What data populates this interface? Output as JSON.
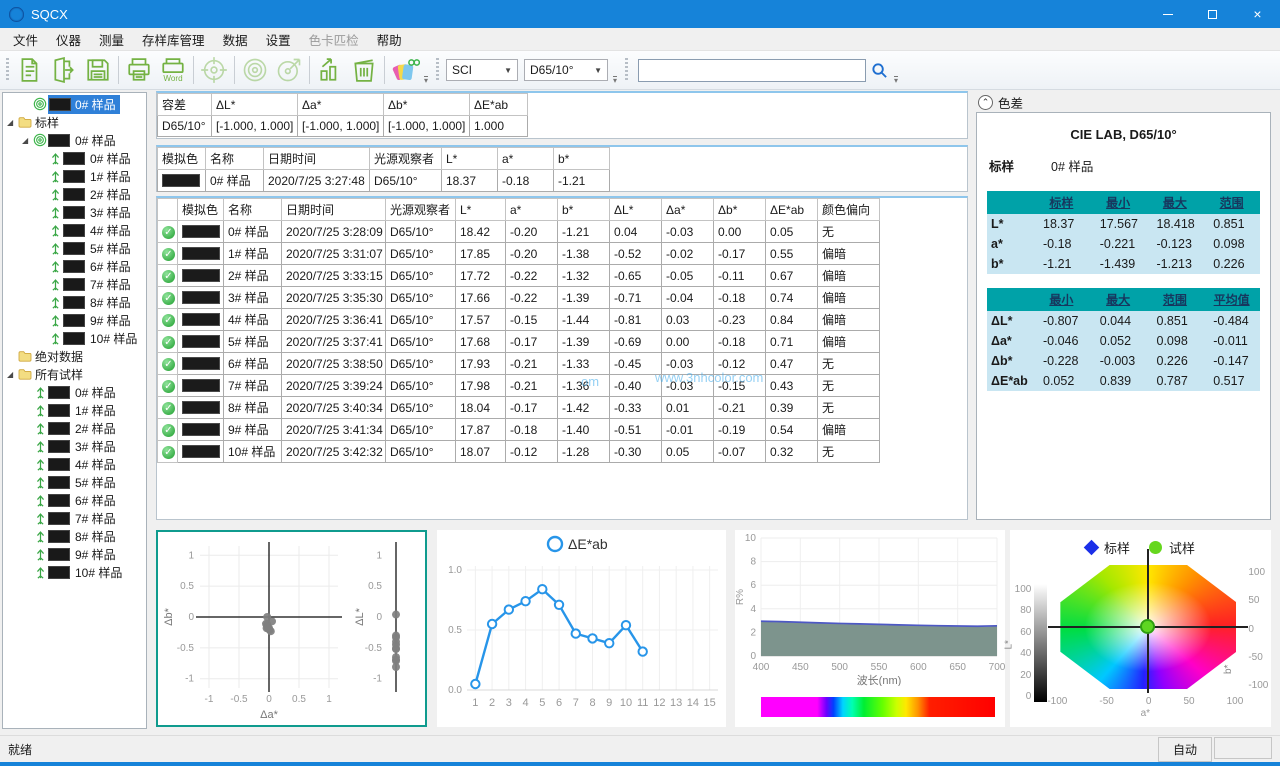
{
  "window": {
    "title": "SQCX"
  },
  "menu": {
    "items": [
      {
        "label": "文件",
        "disabled": false
      },
      {
        "label": "仪器",
        "disabled": false
      },
      {
        "label": "测量",
        "disabled": false
      },
      {
        "label": "存样库管理",
        "disabled": false
      },
      {
        "label": "数据",
        "disabled": false
      },
      {
        "label": "设置",
        "disabled": false
      },
      {
        "label": "色卡匹检",
        "disabled": true
      },
      {
        "label": "帮助",
        "disabled": false
      }
    ]
  },
  "toolbar": {
    "buttons": [
      {
        "icon": "new-document-icon",
        "disabled": false
      },
      {
        "icon": "import-icon",
        "disabled": false
      },
      {
        "icon": "save-icon",
        "disabled": false
      },
      {
        "icon": "print-icon",
        "disabled": false
      },
      {
        "icon": "export-word-icon",
        "disabled": false,
        "label": "Word"
      },
      {
        "icon": "calibration-target-icon",
        "disabled": true
      },
      {
        "icon": "measure-standard-icon",
        "disabled": true
      },
      {
        "icon": "measure-sample-icon",
        "disabled": true
      },
      {
        "icon": "analysis-chart-icon",
        "disabled": false
      },
      {
        "icon": "delete-icon",
        "disabled": false
      },
      {
        "icon": "color-match-icon",
        "disabled": false
      }
    ],
    "mode_select": "SCI",
    "illuminant_select": "D65/10°",
    "search_value": ""
  },
  "tree": {
    "items": [
      {
        "indent": 1,
        "icon": "target-icon",
        "swatch": true,
        "label": "0# 样品",
        "selected": true
      },
      {
        "indent": 0,
        "expander": true,
        "icon": "folder-icon",
        "label": "标样"
      },
      {
        "indent": 1,
        "expander": true,
        "icon": "target-icon",
        "swatch": true,
        "label": "0# 样品"
      },
      {
        "indent": 2,
        "icon": "up-arrow-icon",
        "swatch": true,
        "label": "0# 样品"
      },
      {
        "indent": 2,
        "icon": "up-arrow-icon",
        "swatch": true,
        "label": "1# 样品"
      },
      {
        "indent": 2,
        "icon": "up-arrow-icon",
        "swatch": true,
        "label": "2# 样品"
      },
      {
        "indent": 2,
        "icon": "up-arrow-icon",
        "swatch": true,
        "label": "3# 样品"
      },
      {
        "indent": 2,
        "icon": "up-arrow-icon",
        "swatch": true,
        "label": "4# 样品"
      },
      {
        "indent": 2,
        "icon": "up-arrow-icon",
        "swatch": true,
        "label": "5# 样品"
      },
      {
        "indent": 2,
        "icon": "up-arrow-icon",
        "swatch": true,
        "label": "6# 样品"
      },
      {
        "indent": 2,
        "icon": "up-arrow-icon",
        "swatch": true,
        "label": "7# 样品"
      },
      {
        "indent": 2,
        "icon": "up-arrow-icon",
        "swatch": true,
        "label": "8# 样品"
      },
      {
        "indent": 2,
        "icon": "up-arrow-icon",
        "swatch": true,
        "label": "9# 样品"
      },
      {
        "indent": 2,
        "icon": "up-arrow-icon",
        "swatch": true,
        "label": "10# 样品"
      },
      {
        "indent": 0,
        "icon": "folder-icon",
        "label": "绝对数据"
      },
      {
        "indent": 0,
        "expander": true,
        "icon": "folder-icon",
        "label": "所有试样"
      },
      {
        "indent": 1,
        "icon": "up-arrow-icon",
        "swatch": true,
        "label": "0# 样品"
      },
      {
        "indent": 1,
        "icon": "up-arrow-icon",
        "swatch": true,
        "label": "1# 样品"
      },
      {
        "indent": 1,
        "icon": "up-arrow-icon",
        "swatch": true,
        "label": "2# 样品"
      },
      {
        "indent": 1,
        "icon": "up-arrow-icon",
        "swatch": true,
        "label": "3# 样品"
      },
      {
        "indent": 1,
        "icon": "up-arrow-icon",
        "swatch": true,
        "label": "4# 样品"
      },
      {
        "indent": 1,
        "icon": "up-arrow-icon",
        "swatch": true,
        "label": "5# 样品"
      },
      {
        "indent": 1,
        "icon": "up-arrow-icon",
        "swatch": true,
        "label": "6# 样品"
      },
      {
        "indent": 1,
        "icon": "up-arrow-icon",
        "swatch": true,
        "label": "7# 样品"
      },
      {
        "indent": 1,
        "icon": "up-arrow-icon",
        "swatch": true,
        "label": "8# 样品"
      },
      {
        "indent": 1,
        "icon": "up-arrow-icon",
        "swatch": true,
        "label": "9# 样品"
      },
      {
        "indent": 1,
        "icon": "up-arrow-icon",
        "swatch": true,
        "label": "10# 样品"
      }
    ]
  },
  "tolerance_table": {
    "headers": [
      "容差",
      "ΔL*",
      "Δa*",
      "Δb*",
      "ΔE*ab"
    ],
    "row": [
      "D65/10°",
      "[-1.000, 1.000]",
      "[-1.000, 1.000]",
      "[-1.000, 1.000]",
      "1.000"
    ]
  },
  "standard_table": {
    "headers": [
      "模拟色",
      "名称",
      "日期时间",
      "光源观察者",
      "L*",
      "a*",
      "b*"
    ],
    "row": [
      "0# 样品",
      "2020/7/25 3:27:48",
      "D65/10°",
      "18.37",
      "-0.18",
      "-1.21"
    ]
  },
  "samples_table": {
    "headers": [
      "",
      "模拟色",
      "名称",
      "日期时间",
      "光源观察者",
      "L*",
      "a*",
      "b*",
      "ΔL*",
      "Δa*",
      "Δb*",
      "ΔE*ab",
      "颜色偏向"
    ],
    "rows": [
      [
        "0# 样品",
        "2020/7/25 3:28:09",
        "D65/10°",
        "18.42",
        "-0.20",
        "-1.21",
        "0.04",
        "-0.03",
        "0.00",
        "0.05",
        "无"
      ],
      [
        "1# 样品",
        "2020/7/25 3:31:07",
        "D65/10°",
        "17.85",
        "-0.20",
        "-1.38",
        "-0.52",
        "-0.02",
        "-0.17",
        "0.55",
        "偏暗"
      ],
      [
        "2# 样品",
        "2020/7/25 3:33:15",
        "D65/10°",
        "17.72",
        "-0.22",
        "-1.32",
        "-0.65",
        "-0.05",
        "-0.11",
        "0.67",
        "偏暗"
      ],
      [
        "3# 样品",
        "2020/7/25 3:35:30",
        "D65/10°",
        "17.66",
        "-0.22",
        "-1.39",
        "-0.71",
        "-0.04",
        "-0.18",
        "0.74",
        "偏暗"
      ],
      [
        "4# 样品",
        "2020/7/25 3:36:41",
        "D65/10°",
        "17.57",
        "-0.15",
        "-1.44",
        "-0.81",
        "0.03",
        "-0.23",
        "0.84",
        "偏暗"
      ],
      [
        "5# 样品",
        "2020/7/25 3:37:41",
        "D65/10°",
        "17.68",
        "-0.17",
        "-1.39",
        "-0.69",
        "0.00",
        "-0.18",
        "0.71",
        "偏暗"
      ],
      [
        "6# 样品",
        "2020/7/25 3:38:50",
        "D65/10°",
        "17.93",
        "-0.21",
        "-1.33",
        "-0.45",
        "-0.03",
        "-0.12",
        "0.47",
        "无"
      ],
      [
        "7# 样品",
        "2020/7/25 3:39:24",
        "D65/10°",
        "17.98",
        "-0.21",
        "-1.36",
        "-0.40",
        "-0.03",
        "-0.15",
        "0.43",
        "无"
      ],
      [
        "8# 样品",
        "2020/7/25 3:40:34",
        "D65/10°",
        "18.04",
        "-0.17",
        "-1.42",
        "-0.33",
        "0.01",
        "-0.21",
        "0.39",
        "无"
      ],
      [
        "9# 样品",
        "2020/7/25 3:41:34",
        "D65/10°",
        "17.87",
        "-0.18",
        "-1.40",
        "-0.51",
        "-0.01",
        "-0.19",
        "0.54",
        "偏暗"
      ],
      [
        "10# 样品",
        "2020/7/25 3:42:32",
        "D65/10°",
        "18.07",
        "-0.12",
        "-1.28",
        "-0.30",
        "0.05",
        "-0.07",
        "0.32",
        "无"
      ]
    ]
  },
  "diff_panel": {
    "caption": "色差",
    "title": "CIE LAB, D65/10°",
    "standard_label": "标样",
    "standard_name": "0# 样品",
    "lab_table": {
      "headers": [
        "",
        "标样",
        "最小",
        "最大",
        "范围"
      ],
      "rows": [
        [
          "L*",
          "18.37",
          "17.567",
          "18.418",
          "0.851"
        ],
        [
          "a*",
          "-0.18",
          "-0.221",
          "-0.123",
          "0.098"
        ],
        [
          "b*",
          "-1.21",
          "-1.439",
          "-1.213",
          "0.226"
        ]
      ]
    },
    "delta_table": {
      "headers": [
        "",
        "最小",
        "最大",
        "范围",
        "平均值"
      ],
      "rows": [
        [
          "ΔL*",
          "-0.807",
          "0.044",
          "0.851",
          "-0.484"
        ],
        [
          "Δa*",
          "-0.046",
          "0.052",
          "0.098",
          "-0.011"
        ],
        [
          "Δb*",
          "-0.228",
          "-0.003",
          "0.226",
          "-0.147"
        ],
        [
          "ΔE*ab",
          "0.052",
          "0.839",
          "0.787",
          "0.517"
        ]
      ]
    }
  },
  "watermark": "www.3nhcolor.com",
  "status_bar": {
    "left": "就绪",
    "right": "自动"
  },
  "colors": {
    "titlebar": "#1683d9",
    "accent_teal": "#00a2a8",
    "row_blue": "#c9e6f2",
    "selection": "#2f80d8",
    "icon_green": "#74b243"
  },
  "chart_data": [
    {
      "type": "scatter",
      "name": "dab-scatter",
      "xlabel": "Δa*",
      "ylabel": "Δb*",
      "xlim": [
        -1,
        1
      ],
      "ylim": [
        -1,
        1
      ],
      "xticks": [
        -1,
        -0.5,
        0,
        0.5,
        1
      ],
      "yticks": [
        -1,
        -0.5,
        0,
        0.5,
        1
      ],
      "marker_color": "#7f7f7f",
      "grid": true,
      "points": [
        [
          -0.03,
          0.0
        ],
        [
          -0.02,
          -0.17
        ],
        [
          -0.05,
          -0.11
        ],
        [
          -0.04,
          -0.18
        ],
        [
          0.03,
          -0.23
        ],
        [
          0.0,
          -0.18
        ],
        [
          -0.03,
          -0.12
        ],
        [
          -0.03,
          -0.15
        ],
        [
          0.01,
          -0.21
        ],
        [
          -0.01,
          -0.19
        ],
        [
          0.05,
          -0.07
        ]
      ]
    },
    {
      "type": "scatter",
      "name": "dl-strip",
      "ylabel": "ΔL*",
      "ylim": [
        -1,
        1
      ],
      "yticks": [
        -1,
        -0.5,
        0,
        0.5,
        1
      ],
      "marker_color": "#7f7f7f",
      "values": [
        0.04,
        -0.52,
        -0.65,
        -0.71,
        -0.81,
        -0.69,
        -0.45,
        -0.4,
        -0.33,
        -0.51,
        -0.3
      ]
    },
    {
      "type": "line",
      "name": "delta-e-trend",
      "legend": "ΔE*ab",
      "line_color": "#2795e9",
      "x": [
        1,
        2,
        3,
        4,
        5,
        6,
        7,
        8,
        9,
        10,
        11
      ],
      "values": [
        0.05,
        0.55,
        0.67,
        0.74,
        0.84,
        0.71,
        0.47,
        0.43,
        0.39,
        0.54,
        0.32
      ],
      "xticks": [
        1,
        2,
        3,
        4,
        5,
        6,
        7,
        8,
        9,
        10,
        11,
        12,
        13,
        14,
        15
      ],
      "ylim": [
        0,
        1
      ],
      "ytick_labels": [
        "0.0",
        "0.5",
        "1.0"
      ],
      "grid": true
    },
    {
      "type": "area",
      "name": "spectral-reflectance",
      "xlabel": "波长(nm)",
      "ylabel": "R%",
      "xlim": [
        400,
        700
      ],
      "ylim": [
        0,
        10
      ],
      "xticks": [
        400,
        450,
        500,
        550,
        600,
        650,
        700
      ],
      "yticks": [
        0,
        2,
        4,
        6,
        8,
        10
      ],
      "x": [
        400,
        425,
        450,
        475,
        500,
        525,
        550,
        575,
        600,
        625,
        650,
        675,
        700
      ],
      "series": [
        {
          "name": "标样",
          "values": [
            2.95,
            2.91,
            2.86,
            2.81,
            2.76,
            2.72,
            2.68,
            2.64,
            2.6,
            2.57,
            2.54,
            2.52,
            2.56
          ]
        },
        {
          "name": "试样",
          "values": [
            2.9,
            2.86,
            2.81,
            2.76,
            2.71,
            2.67,
            2.63,
            2.59,
            2.56,
            2.52,
            2.49,
            2.46,
            2.51
          ]
        }
      ],
      "area_color": "#7d948d",
      "line_color": "#4d58c4",
      "grid": true
    },
    {
      "type": "gamut",
      "name": "lab-color-space",
      "legend": [
        {
          "label": "标样",
          "marker": "diamond",
          "color": "#1b2fe8"
        },
        {
          "label": "试样",
          "marker": "circle",
          "color": "#66d71e"
        }
      ],
      "l_axis": {
        "label": "L*",
        "ticks": [
          100,
          80,
          60,
          40,
          20,
          0
        ]
      },
      "a_axis": {
        "label": "a*",
        "ticks": [
          -100,
          -50,
          0,
          50,
          100
        ]
      },
      "b_axis": {
        "label": "b*",
        "ticks": [
          100,
          50,
          0,
          -50,
          -100
        ]
      },
      "sample_point": {
        "a": 0,
        "b": 0,
        "color": "#5ed621"
      }
    }
  ]
}
